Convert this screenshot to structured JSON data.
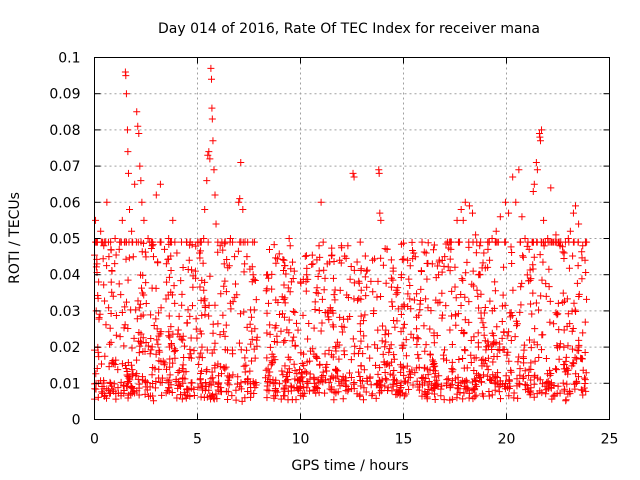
{
  "chart_data": {
    "type": "scatter",
    "title": "Day 014 of 2016, Rate Of TEC Index for receiver mana",
    "xlabel": "GPS time / hours",
    "ylabel": "ROTI / TECUs",
    "xlim": [
      0,
      25
    ],
    "ylim": [
      0,
      0.1
    ],
    "x_ticks": [
      0,
      5,
      10,
      15,
      20,
      25
    ],
    "x_tick_labels": [
      "0",
      "5",
      "10",
      "15",
      "20",
      "25"
    ],
    "y_ticks": [
      0,
      0.01,
      0.02,
      0.03,
      0.04,
      0.05,
      0.06,
      0.07,
      0.08,
      0.09,
      0.1
    ],
    "y_tick_labels": [
      "0",
      "0.01",
      "0.02",
      "0.03",
      "0.04",
      "0.05",
      "0.06",
      "0.07",
      "0.08",
      "0.09",
      "0.1"
    ],
    "grid": true,
    "marker": "+",
    "color": "#ff0000",
    "data_gaps_hours": [
      [
        7.9,
        8.3
      ],
      [
        23.9,
        25
      ]
    ],
    "series": [
      {
        "name": "ROTI",
        "points": [
          [
            0.05,
            0.055
          ],
          [
            0.12,
            0.043
          ],
          [
            0.2,
            0.038
          ],
          [
            0.3,
            0.052
          ],
          [
            0.45,
            0.048
          ],
          [
            0.6,
            0.06
          ],
          [
            0.7,
            0.045
          ],
          [
            0.85,
            0.041
          ],
          [
            1.0,
            0.05
          ],
          [
            1.2,
            0.047
          ],
          [
            1.35,
            0.055
          ],
          [
            1.5,
            0.096
          ],
          [
            1.52,
            0.095
          ],
          [
            1.55,
            0.09
          ],
          [
            1.6,
            0.08
          ],
          [
            1.62,
            0.074
          ],
          [
            1.65,
            0.068
          ],
          [
            1.7,
            0.058
          ],
          [
            1.8,
            0.052
          ],
          [
            1.95,
            0.065
          ],
          [
            2.05,
            0.085
          ],
          [
            2.1,
            0.081
          ],
          [
            2.15,
            0.079
          ],
          [
            2.2,
            0.07
          ],
          [
            2.25,
            0.066
          ],
          [
            2.3,
            0.06
          ],
          [
            2.4,
            0.055
          ],
          [
            2.6,
            0.05
          ],
          [
            2.8,
            0.048
          ],
          [
            3.0,
            0.062
          ],
          [
            3.2,
            0.065
          ],
          [
            3.4,
            0.047
          ],
          [
            3.6,
            0.05
          ],
          [
            3.8,
            0.055
          ],
          [
            4.0,
            0.046
          ],
          [
            4.3,
            0.042
          ],
          [
            4.6,
            0.044
          ],
          [
            4.9,
            0.041
          ],
          [
            5.1,
            0.046
          ],
          [
            5.3,
            0.05
          ],
          [
            5.35,
            0.058
          ],
          [
            5.45,
            0.066
          ],
          [
            5.5,
            0.073
          ],
          [
            5.55,
            0.074
          ],
          [
            5.6,
            0.072
          ],
          [
            5.65,
            0.097
          ],
          [
            5.68,
            0.094
          ],
          [
            5.7,
            0.086
          ],
          [
            5.72,
            0.083
          ],
          [
            5.75,
            0.077
          ],
          [
            5.8,
            0.069
          ],
          [
            5.85,
            0.062
          ],
          [
            5.9,
            0.054
          ],
          [
            6.1,
            0.048
          ],
          [
            6.3,
            0.043
          ],
          [
            6.6,
            0.05
          ],
          [
            6.8,
            0.045
          ],
          [
            7.0,
            0.06
          ],
          [
            7.05,
            0.061
          ],
          [
            7.1,
            0.071
          ],
          [
            7.2,
            0.058
          ],
          [
            7.4,
            0.045
          ],
          [
            7.7,
            0.04
          ],
          [
            8.4,
            0.04
          ],
          [
            8.6,
            0.036
          ],
          [
            8.8,
            0.033
          ],
          [
            9.2,
            0.044
          ],
          [
            9.45,
            0.05
          ],
          [
            9.5,
            0.048
          ],
          [
            9.7,
            0.041
          ],
          [
            10.0,
            0.038
          ],
          [
            10.3,
            0.04
          ],
          [
            10.6,
            0.043
          ],
          [
            10.9,
            0.048
          ],
          [
            11.0,
            0.06
          ],
          [
            11.3,
            0.043
          ],
          [
            11.6,
            0.039
          ],
          [
            11.9,
            0.044
          ],
          [
            12.3,
            0.048
          ],
          [
            12.55,
            0.068
          ],
          [
            12.6,
            0.067
          ],
          [
            12.9,
            0.049
          ],
          [
            13.2,
            0.041
          ],
          [
            13.5,
            0.044
          ],
          [
            13.8,
            0.069
          ],
          [
            13.82,
            0.068
          ],
          [
            13.85,
            0.057
          ],
          [
            13.9,
            0.055
          ],
          [
            14.2,
            0.047
          ],
          [
            14.5,
            0.041
          ],
          [
            14.9,
            0.04
          ],
          [
            15.2,
            0.044
          ],
          [
            15.5,
            0.046
          ],
          [
            15.9,
            0.049
          ],
          [
            16.1,
            0.046
          ],
          [
            16.4,
            0.043
          ],
          [
            16.7,
            0.04
          ],
          [
            17.0,
            0.045
          ],
          [
            17.3,
            0.047
          ],
          [
            17.6,
            0.055
          ],
          [
            17.8,
            0.058
          ],
          [
            17.9,
            0.055
          ],
          [
            18.0,
            0.06
          ],
          [
            18.2,
            0.059
          ],
          [
            18.35,
            0.057
          ],
          [
            18.5,
            0.051
          ],
          [
            18.7,
            0.048
          ],
          [
            18.9,
            0.046
          ],
          [
            19.1,
            0.047
          ],
          [
            19.3,
            0.05
          ],
          [
            19.5,
            0.052
          ],
          [
            19.7,
            0.056
          ],
          [
            19.95,
            0.06
          ],
          [
            20.1,
            0.057
          ],
          [
            20.3,
            0.067
          ],
          [
            20.45,
            0.06
          ],
          [
            20.6,
            0.069
          ],
          [
            20.75,
            0.056
          ],
          [
            20.9,
            0.05
          ],
          [
            21.1,
            0.047
          ],
          [
            21.3,
            0.063
          ],
          [
            21.35,
            0.065
          ],
          [
            21.45,
            0.071
          ],
          [
            21.5,
            0.069
          ],
          [
            21.6,
            0.079
          ],
          [
            21.62,
            0.078
          ],
          [
            21.65,
            0.077
          ],
          [
            21.7,
            0.08
          ],
          [
            21.8,
            0.055
          ],
          [
            22.0,
            0.05
          ],
          [
            22.15,
            0.064
          ],
          [
            22.4,
            0.051
          ],
          [
            22.6,
            0.048
          ],
          [
            22.8,
            0.046
          ],
          [
            23.0,
            0.05
          ],
          [
            23.1,
            0.052
          ],
          [
            23.25,
            0.057
          ],
          [
            23.35,
            0.059
          ],
          [
            23.5,
            0.054
          ],
          [
            23.7,
            0.048
          ]
        ]
      }
    ]
  }
}
